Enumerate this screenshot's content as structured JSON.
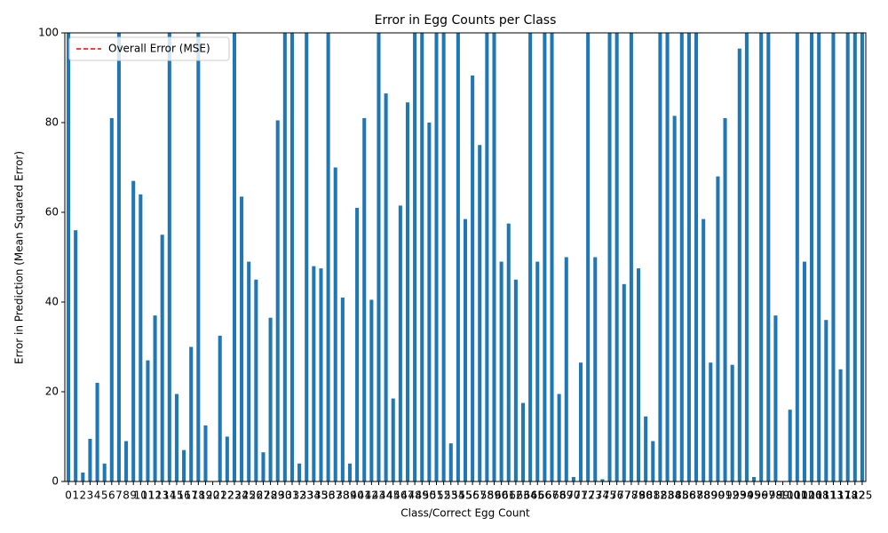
{
  "chart_data": {
    "type": "bar",
    "title": "Error in Egg Counts per Class",
    "x_label": "Class/Correct Egg Count",
    "y_label": "Error in Prediction (Mean Squared Error)",
    "categories": [
      "0",
      "1",
      "2",
      "3",
      "4",
      "5",
      "6",
      "7",
      "8",
      "9",
      "10",
      "11",
      "12",
      "13",
      "14",
      "15",
      "16",
      "17",
      "18",
      "19",
      "20",
      "21",
      "22",
      "23",
      "24",
      "25",
      "26",
      "27",
      "28",
      "29",
      "30",
      "31",
      "32",
      "33",
      "34",
      "35",
      "36",
      "37",
      "38",
      "39",
      "40",
      "41",
      "42",
      "43",
      "44",
      "45",
      "46",
      "47",
      "48",
      "49",
      "50",
      "51",
      "52",
      "53",
      "54",
      "55",
      "56",
      "57",
      "58",
      "59",
      "60",
      "61",
      "62",
      "63",
      "64",
      "65",
      "66",
      "67",
      "68",
      "69",
      "70",
      "71",
      "72",
      "73",
      "74",
      "75",
      "76",
      "77",
      "78",
      "79",
      "80",
      "81",
      "82",
      "83",
      "84",
      "85",
      "86",
      "87",
      "88",
      "89",
      "90",
      "91",
      "92",
      "93",
      "94",
      "95",
      "96",
      "97",
      "98",
      "99",
      "100",
      "101",
      "102",
      "106",
      "108",
      "111",
      "113",
      "117",
      "118",
      "122",
      "125"
    ],
    "values": [
      100,
      56,
      2,
      9.5,
      22,
      4,
      81,
      100,
      9,
      67,
      64,
      27,
      37,
      55,
      100,
      19.5,
      7,
      30,
      100,
      12.5,
      0,
      32.5,
      10,
      100,
      63.5,
      49,
      45,
      6.5,
      36.5,
      80.5,
      100,
      100,
      4,
      100,
      48,
      47.5,
      100,
      70,
      41,
      4,
      61,
      81,
      40.5,
      100,
      86.5,
      18.5,
      61.5,
      84.5,
      100,
      100,
      80,
      100,
      100,
      8.5,
      100,
      58.5,
      90.5,
      75,
      100,
      100,
      49,
      57.5,
      45,
      17.5,
      100,
      49,
      100,
      100,
      19.5,
      50,
      1,
      26.5,
      100,
      50,
      0.5,
      100,
      100,
      44,
      100,
      47.5,
      14.5,
      9,
      100,
      100,
      81.5,
      100,
      100,
      100,
      58.5,
      26.5,
      68,
      81,
      26,
      96.5,
      100,
      1,
      100,
      100,
      37,
      0,
      16,
      100,
      49,
      100,
      100,
      36,
      100,
      25,
      100,
      100,
      100
    ],
    "color": "#1f77b4",
    "ylim": [
      0,
      100
    ],
    "yticks": [
      0,
      20,
      40,
      60,
      80,
      100
    ],
    "reference_line": {
      "name": "Overall Error (MSE)",
      "color": "#ff0000"
    },
    "legend": "upper left"
  }
}
